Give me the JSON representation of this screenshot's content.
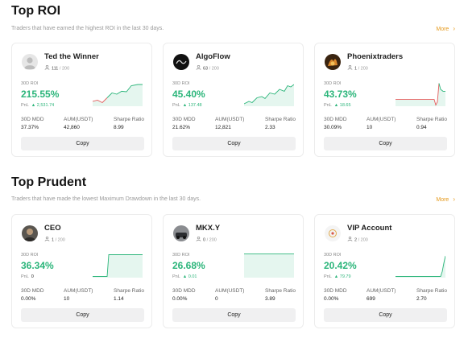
{
  "sections": [
    {
      "title": "Top ROI",
      "subtitle": "Traders that have earned the highest ROI in the last 30 days.",
      "more": "More",
      "cards": [
        {
          "name": "Ted the Winner",
          "count": "111",
          "count_max": "/ 200",
          "roi_label": "30D ROI",
          "roi": "215.55%",
          "pnl_label": "PnL",
          "pnl": "2,531.74",
          "stats": [
            {
              "label": "30D MDD",
              "value": "37.37%"
            },
            {
              "label": "AUM(USDT)",
              "value": "42,860"
            },
            {
              "label": "Sharpe Ratio",
              "value": "8.99"
            }
          ],
          "copy": "Copy",
          "avatar": "default-user-avatar",
          "trend": [
            [
              0,
              0.2
            ],
            [
              6,
              0.25
            ],
            [
              12,
              0.15
            ],
            [
              18,
              0.35
            ],
            [
              24,
              0.55
            ],
            [
              30,
              0.5
            ],
            [
              36,
              0.62
            ],
            [
              42,
              0.6
            ],
            [
              48,
              0.85
            ],
            [
              56,
              0.9
            ],
            [
              62,
              0.9
            ]
          ]
        },
        {
          "name": "AlgoFlow",
          "count": "63",
          "count_max": "/ 200",
          "roi_label": "30D ROI",
          "roi": "45.40%",
          "pnl_label": "PnL",
          "pnl": "137.48",
          "stats": [
            {
              "label": "30D MDD",
              "value": "21.62%"
            },
            {
              "label": "AUM(USDT)",
              "value": "12,821"
            },
            {
              "label": "Sharpe Ratio",
              "value": "2.33"
            }
          ],
          "copy": "Copy",
          "avatar": "algoflow-logo",
          "trend": [
            [
              0,
              0.1
            ],
            [
              6,
              0.2
            ],
            [
              10,
              0.15
            ],
            [
              16,
              0.35
            ],
            [
              22,
              0.4
            ],
            [
              26,
              0.32
            ],
            [
              32,
              0.55
            ],
            [
              38,
              0.5
            ],
            [
              44,
              0.7
            ],
            [
              50,
              0.62
            ],
            [
              54,
              0.85
            ],
            [
              58,
              0.8
            ],
            [
              62,
              0.9
            ]
          ]
        },
        {
          "name": "Phoenixtraders",
          "count": "1",
          "count_max": "/ 200",
          "roi_label": "30D ROI",
          "roi": "43.73%",
          "pnl_label": "PnL",
          "pnl": "18.65",
          "stats": [
            {
              "label": "30D MDD",
              "value": "30.09%"
            },
            {
              "label": "AUM(USDT)",
              "value": "10",
              "suffix": ""
            },
            {
              "label": "Sharpe Ratio",
              "value": "0.94"
            }
          ],
          "copy": "Copy",
          "avatar": "phoenix-photo",
          "trend": [
            [
              0,
              0.28
            ],
            [
              40,
              0.28
            ],
            [
              48,
              0.28
            ],
            [
              50,
              0.05
            ],
            [
              52,
              0.18
            ],
            [
              54,
              0.95
            ],
            [
              56,
              0.7
            ],
            [
              59,
              0.62
            ],
            [
              62,
              0.62
            ]
          ]
        }
      ]
    },
    {
      "title": "Top Prudent",
      "subtitle": "Traders that have made the lowest Maximum Drawdown in the last 30 days.",
      "more": "More",
      "cards": [
        {
          "name": "CEO",
          "count": "1",
          "count_max": "/ 200",
          "roi_label": "30D ROI",
          "roi": "36.34%",
          "pnl_label": "PnL",
          "pnl": "0",
          "pnl_up": false,
          "stats": [
            {
              "label": "30D MDD",
              "value": "0.00%"
            },
            {
              "label": "AUM(USDT)",
              "value": "10"
            },
            {
              "label": "Sharpe Ratio",
              "value": "1.14"
            }
          ],
          "copy": "Copy",
          "avatar": "ceo-photo",
          "trend": [
            [
              0,
              0.05
            ],
            [
              18,
              0.05
            ],
            [
              20,
              0.95
            ],
            [
              62,
              0.95
            ]
          ]
        },
        {
          "name": "MKX.Y",
          "count": "0",
          "count_max": "/ 200",
          "roi_label": "30D ROI",
          "roi": "26.68%",
          "pnl_label": "PnL",
          "pnl": "0.01",
          "stats": [
            {
              "label": "30D MDD",
              "value": "0.00%"
            },
            {
              "label": "AUM(USDT)",
              "value": "0"
            },
            {
              "label": "Sharpe Ratio",
              "value": "3.89"
            }
          ],
          "copy": "Copy",
          "avatar": "mkxy-photo",
          "trend": [
            [
              0,
              0.98
            ],
            [
              62,
              0.98
            ]
          ]
        },
        {
          "name": "VIP Account",
          "count": "2",
          "count_max": "/ 200",
          "roi_label": "30D ROI",
          "roi": "20.42%",
          "pnl_label": "PnL",
          "pnl": "79.79",
          "stats": [
            {
              "label": "30D MDD",
              "value": "0.00%"
            },
            {
              "label": "AUM(USDT)",
              "value": "699"
            },
            {
              "label": "Sharpe Ratio",
              "value": "2.70"
            }
          ],
          "copy": "Copy",
          "avatar": "vip-logo",
          "trend": [
            [
              0,
              0.05
            ],
            [
              56,
              0.05
            ],
            [
              58,
              0.25
            ],
            [
              60,
              0.6
            ],
            [
              62,
              0.9
            ]
          ]
        }
      ]
    }
  ],
  "colors": {
    "accent": "#2bb57a",
    "more": "#e59a1c",
    "down": "#e45b5b"
  }
}
